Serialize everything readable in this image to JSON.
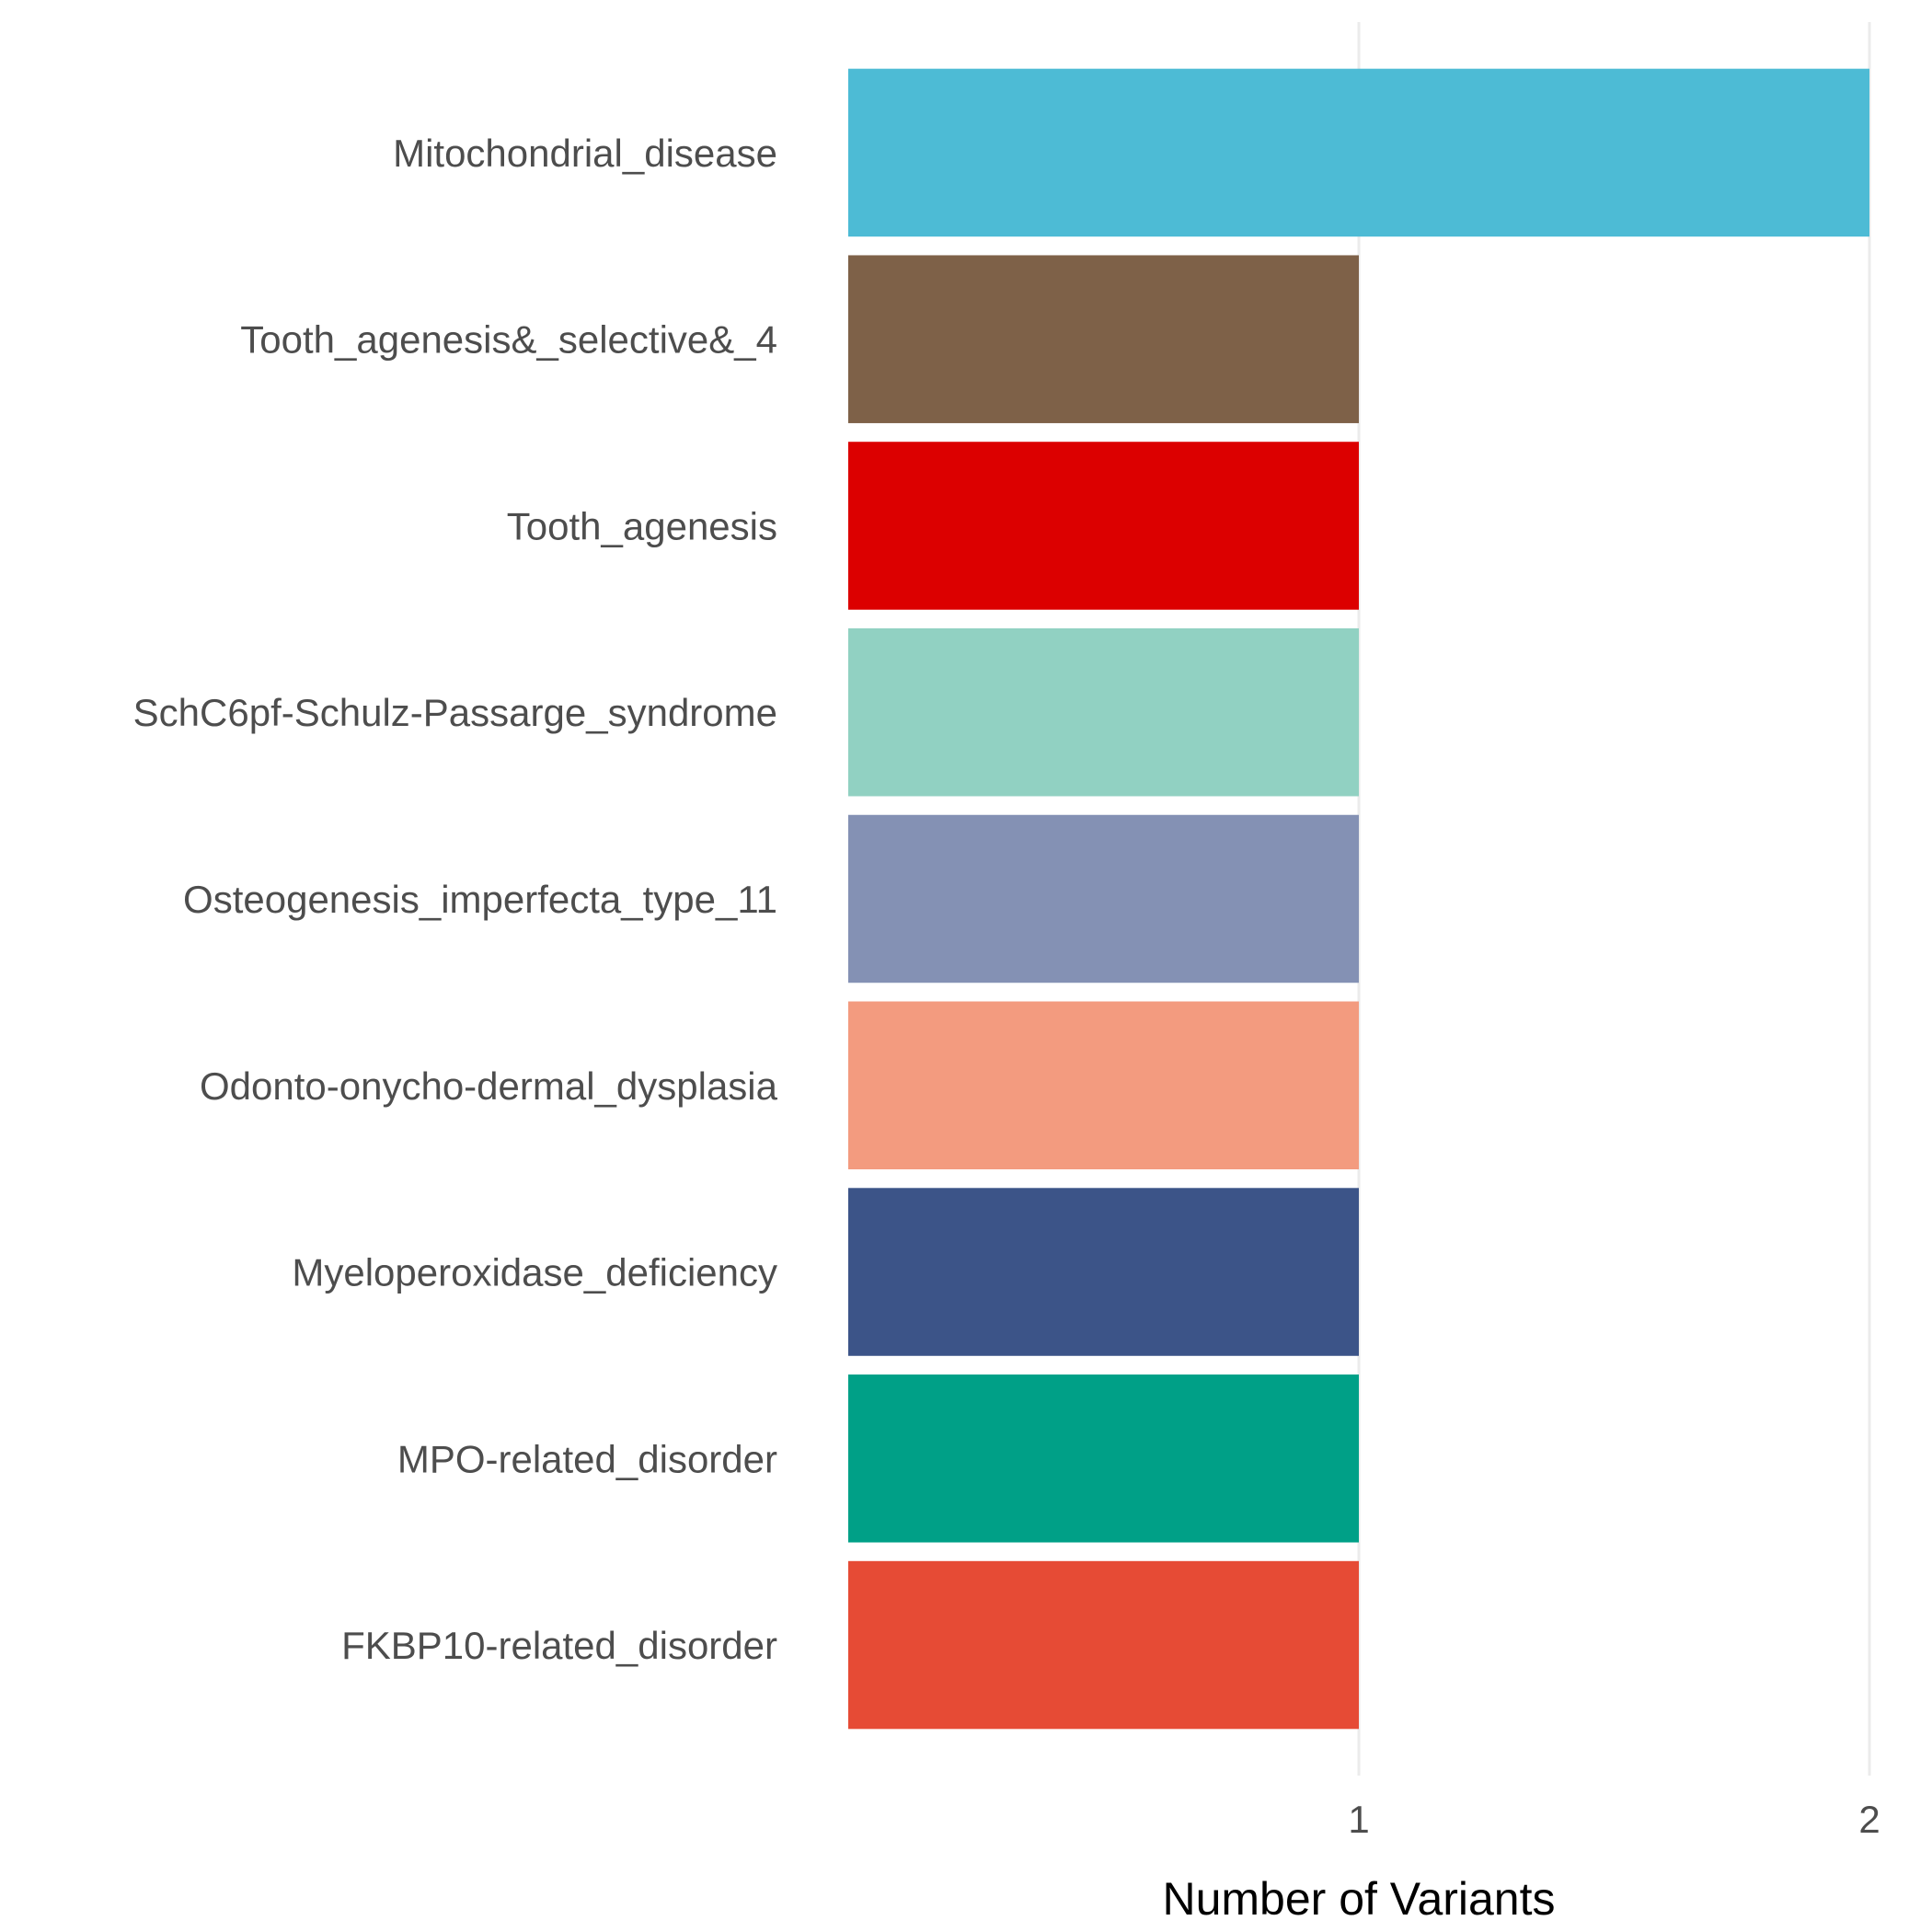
{
  "chart_data": {
    "type": "bar",
    "orientation": "horizontal",
    "title": "",
    "xlabel": "Number of Variants",
    "ylabel": "",
    "xlim": [
      0,
      2
    ],
    "x_ticks": [
      1,
      2
    ],
    "grid": "vertical major lines only",
    "legend": "none",
    "categories": [
      "Mitochondrial_disease",
      "Tooth_agenesis&_selective&_4",
      "Tooth_agenesis",
      "SchC6pf-Schulz-Passarge_syndrome",
      "Osteogenesis_imperfecta_type_11",
      "Odonto-onycho-dermal_dysplasia",
      "Myeloperoxidase_deficiency",
      "MPO-related_disorder",
      "FKBP10-related_disorder"
    ],
    "values": [
      2,
      1,
      1,
      1,
      1,
      1,
      1,
      1,
      1
    ],
    "colors": [
      "#4DBBD5",
      "#7E6148",
      "#DC0000",
      "#91D1C2",
      "#8491B4",
      "#F39B7F",
      "#3C5488",
      "#00A087",
      "#E64B35"
    ]
  }
}
